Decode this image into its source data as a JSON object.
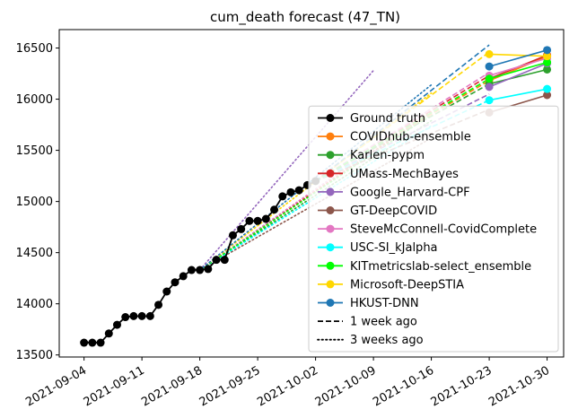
{
  "chart_data": {
    "type": "line",
    "title": "cum_death forecast (47_TN)",
    "xlabel": "",
    "ylabel": "",
    "x_range": [
      "2021-09-01",
      "2021-11-01"
    ],
    "ylim": [
      13480,
      16680
    ],
    "x_ticks": [
      "2021-09-04",
      "2021-09-11",
      "2021-09-18",
      "2021-09-25",
      "2021-10-02",
      "2021-10-09",
      "2021-10-16",
      "2021-10-23",
      "2021-10-30"
    ],
    "y_ticks": [
      13500,
      14000,
      14500,
      15000,
      15500,
      16000,
      16500
    ],
    "legend_position": "lower-right",
    "ground_truth": {
      "name": "Ground truth",
      "color": "#000000",
      "x": [
        "2021-09-04",
        "2021-09-05",
        "2021-09-06",
        "2021-09-07",
        "2021-09-08",
        "2021-09-09",
        "2021-09-10",
        "2021-09-11",
        "2021-09-12",
        "2021-09-13",
        "2021-09-14",
        "2021-09-15",
        "2021-09-16",
        "2021-09-17",
        "2021-09-18",
        "2021-09-19",
        "2021-09-20",
        "2021-09-21",
        "2021-09-22",
        "2021-09-23",
        "2021-09-24",
        "2021-09-25",
        "2021-09-26",
        "2021-09-27",
        "2021-09-28",
        "2021-09-29",
        "2021-09-30",
        "2021-10-01",
        "2021-10-02"
      ],
      "y": [
        13620,
        13620,
        13620,
        13710,
        13795,
        13870,
        13880,
        13880,
        13880,
        13990,
        14120,
        14210,
        14270,
        14330,
        14330,
        14340,
        14430,
        14430,
        14670,
        14730,
        14810,
        14810,
        14830,
        14920,
        15050,
        15090,
        15110,
        15160,
        15200
      ]
    },
    "series": [
      {
        "name": "COVIDhub-ensemble",
        "color": "#ff7f0e",
        "x": [
          "2021-10-23",
          "2021-10-30"
        ],
        "y": [
          16180,
          16420
        ],
        "week1": {
          "x": [
            "2021-10-02",
            "2021-10-23"
          ],
          "y": [
            15200,
            16180
          ]
        },
        "week3": {
          "x": [
            "2021-09-18",
            "2021-10-16"
          ],
          "y": [
            14330,
            15880
          ]
        }
      },
      {
        "name": "Karlen-pypm",
        "color": "#2ca02c",
        "x": [
          "2021-10-23",
          "2021-10-30"
        ],
        "y": [
          16150,
          16290
        ],
        "week1": {
          "x": [
            "2021-10-02",
            "2021-10-23"
          ],
          "y": [
            15200,
            16150
          ]
        },
        "week3": {
          "x": [
            "2021-09-18",
            "2021-10-16"
          ],
          "y": [
            14330,
            15790
          ]
        }
      },
      {
        "name": "UMass-MechBayes",
        "color": "#d62728",
        "x": [
          "2021-10-23",
          "2021-10-30"
        ],
        "y": [
          16200,
          16430
        ],
        "week1": {
          "x": [
            "2021-10-02",
            "2021-10-23"
          ],
          "y": [
            15200,
            16230
          ]
        },
        "week3": {
          "x": [
            "2021-09-18",
            "2021-10-16"
          ],
          "y": [
            14330,
            15870
          ]
        }
      },
      {
        "name": "Google_Harvard-CPF",
        "color": "#9467bd",
        "x": [
          "2021-10-23",
          "2021-10-30"
        ],
        "y": [
          16120,
          16350
        ],
        "week1": {
          "x": [
            "2021-10-02",
            "2021-10-23"
          ],
          "y": [
            15200,
            16050
          ]
        },
        "week3": {
          "x": [
            "2021-09-18",
            "2021-10-09"
          ],
          "y": [
            14330,
            16280
          ]
        }
      },
      {
        "name": "GT-DeepCOVID",
        "color": "#8c564b",
        "x": [
          "2021-10-23",
          "2021-10-30"
        ],
        "y": [
          15870,
          16040
        ],
        "week1": {
          "x": [
            "2021-10-02",
            "2021-10-23"
          ],
          "y": [
            15200,
            15900
          ]
        },
        "week3": {
          "x": [
            "2021-09-18",
            "2021-10-16"
          ],
          "y": [
            14330,
            15620
          ]
        }
      },
      {
        "name": "SteveMcConnell-CovidComplete",
        "color": "#e377c2",
        "x": [
          "2021-10-23",
          "2021-10-30"
        ],
        "y": [
          16230,
          16400
        ],
        "week1": {
          "x": [
            "2021-10-02",
            "2021-10-23"
          ],
          "y": [
            15200,
            16260
          ]
        },
        "week3": {
          "x": [
            "2021-09-18",
            "2021-10-16"
          ],
          "y": [
            14330,
            15910
          ]
        }
      },
      {
        "name": "USC-SI_kJalpha",
        "color": "#00ffff",
        "x": [
          "2021-10-23",
          "2021-10-30"
        ],
        "y": [
          15990,
          16100
        ],
        "week1": {
          "x": [
            "2021-10-02",
            "2021-10-23"
          ],
          "y": [
            15200,
            15990
          ]
        },
        "week3": {
          "x": [
            "2021-09-18",
            "2021-10-16"
          ],
          "y": [
            14330,
            15740
          ]
        }
      },
      {
        "name": "KITmetricslab-select_ensemble",
        "color": "#00ff00",
        "x": [
          "2021-10-23",
          "2021-10-30"
        ],
        "y": [
          16200,
          16360
        ],
        "week1": {
          "x": [
            "2021-10-02",
            "2021-10-23"
          ],
          "y": [
            15200,
            16200
          ]
        },
        "week3": {
          "x": [
            "2021-09-18",
            "2021-10-16"
          ],
          "y": [
            14330,
            15850
          ]
        }
      },
      {
        "name": "Microsoft-DeepSTIA",
        "color": "#ffd700",
        "x": [
          "2021-10-23",
          "2021-10-30"
        ],
        "y": [
          16440,
          16420
        ],
        "week1": {
          "x": [
            "2021-10-02",
            "2021-10-23"
          ],
          "y": [
            15200,
            16460
          ]
        },
        "week3": {
          "x": [
            "2021-09-18",
            "2021-10-16"
          ],
          "y": [
            14330,
            16060
          ]
        }
      },
      {
        "name": "HKUST-DNN",
        "color": "#1f77b4",
        "x": [
          "2021-10-23",
          "2021-10-30"
        ],
        "y": [
          16320,
          16480
        ],
        "week1": {
          "x": [
            "2021-10-02",
            "2021-10-23"
          ],
          "y": [
            15200,
            16530
          ]
        },
        "week3": {
          "x": [
            "2021-09-18",
            "2021-10-16"
          ],
          "y": [
            14330,
            16140
          ]
        }
      }
    ],
    "style_legend": [
      {
        "label": "1 week ago",
        "dash": "dashed"
      },
      {
        "label": "3 weeks ago",
        "dash": "dotted"
      }
    ]
  }
}
